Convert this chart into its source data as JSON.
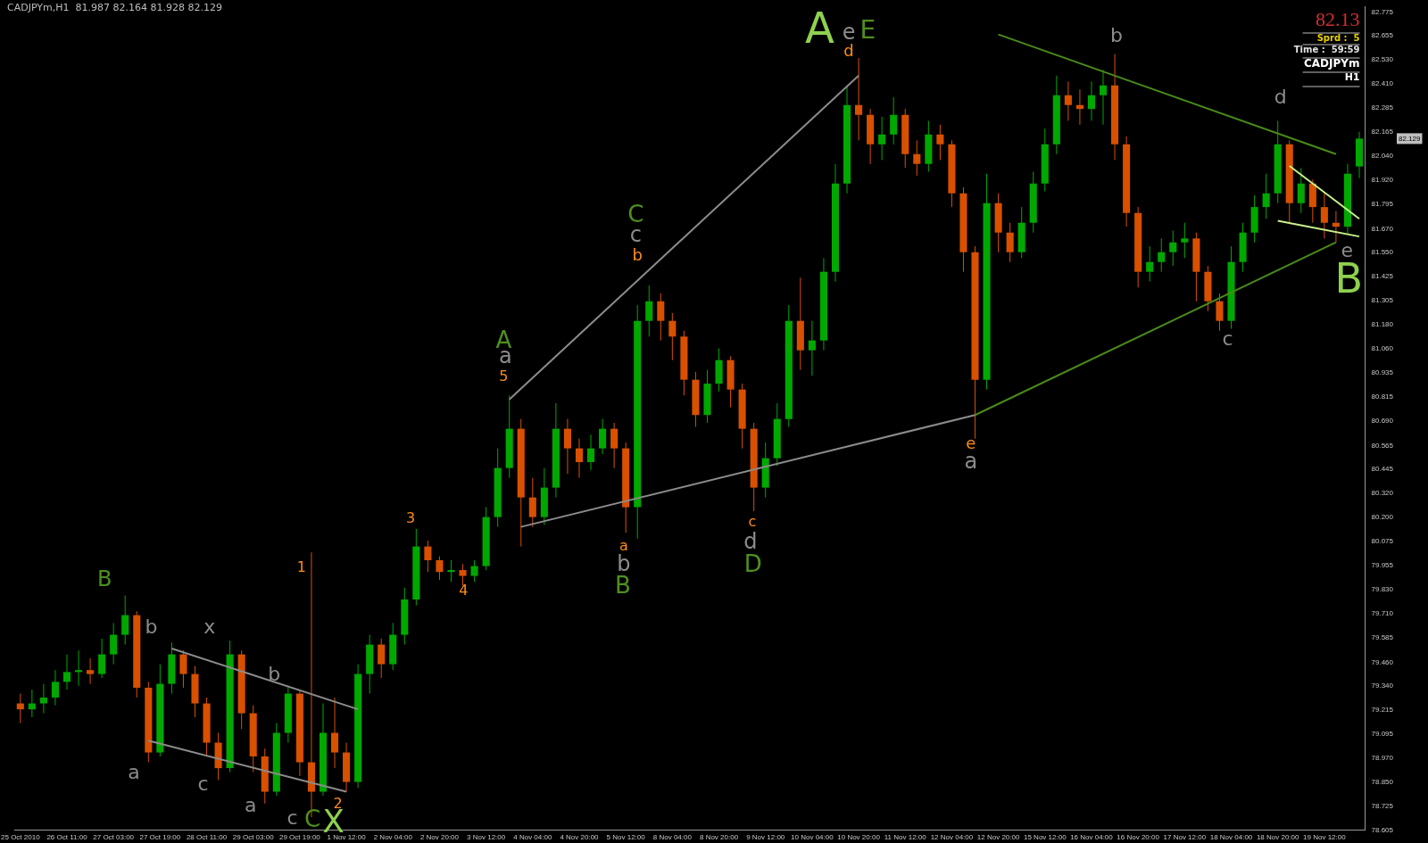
{
  "chart_data": {
    "type": "candlestick",
    "title": "CADJPYm,H1  81.987 82.164 81.928 82.129",
    "categories": [
      "25 Oct 2010",
      null,
      null,
      null,
      "26 Oct 11:00",
      null,
      null,
      null,
      "27 Oct 03:00",
      null,
      null,
      null,
      "27 Oct 19:00",
      null,
      null,
      null,
      "28 Oct 11:00",
      null,
      null,
      null,
      "29 Oct 03:00",
      null,
      null,
      null,
      "29 Oct 19:00",
      null,
      null,
      null,
      "1 Nov 12:00",
      null,
      null,
      null,
      "2 Nov 04:00",
      null,
      null,
      null,
      "2 Nov 20:00",
      null,
      null,
      null,
      "3 Nov 12:00",
      null,
      null,
      null,
      "4 Nov 04:00",
      null,
      null,
      null,
      "4 Nov 20:00",
      null,
      null,
      null,
      "5 Nov 12:00",
      null,
      null,
      null,
      "8 Nov 04:00",
      null,
      null,
      null,
      "8 Nov 20:00",
      null,
      null,
      null,
      "9 Nov 12:00",
      null,
      null,
      null,
      "10 Nov 04:00",
      null,
      null,
      null,
      "10 Nov 20:00",
      null,
      null,
      null,
      "11 Nov 12:00",
      null,
      null,
      null,
      "12 Nov 04:00",
      null,
      null,
      null,
      "12 Nov 20:00",
      null,
      null,
      null,
      "15 Nov 12:00",
      null,
      null,
      null,
      "16 Nov 04:00",
      null,
      null,
      null,
      "16 Nov 20:00",
      null,
      null,
      null,
      "17 Nov 12:00",
      null,
      null,
      null,
      "18 Nov 04:00",
      null,
      null,
      null,
      "18 Nov 20:00",
      null,
      null,
      null,
      "19 Nov 12:00",
      null,
      null,
      null
    ],
    "ohlc": [
      [
        79.25,
        79.3,
        79.15,
        79.22
      ],
      [
        79.22,
        79.32,
        79.18,
        79.25
      ],
      [
        79.25,
        79.35,
        79.2,
        79.28
      ],
      [
        79.28,
        79.42,
        79.24,
        79.36
      ],
      [
        79.36,
        79.5,
        79.32,
        79.41
      ],
      [
        79.41,
        79.52,
        79.34,
        79.42
      ],
      [
        79.42,
        79.48,
        79.35,
        79.4
      ],
      [
        79.4,
        79.58,
        79.38,
        79.5
      ],
      [
        79.5,
        79.66,
        79.45,
        79.6
      ],
      [
        79.6,
        79.8,
        79.55,
        79.7
      ],
      [
        79.7,
        79.72,
        79.28,
        79.33
      ],
      [
        79.33,
        79.36,
        78.95,
        79.0
      ],
      [
        79.0,
        79.45,
        78.98,
        79.35
      ],
      [
        79.35,
        79.56,
        79.3,
        79.5
      ],
      [
        79.5,
        79.52,
        79.33,
        79.4
      ],
      [
        79.4,
        79.44,
        79.18,
        79.25
      ],
      [
        79.25,
        79.28,
        78.98,
        79.05
      ],
      [
        79.05,
        79.1,
        78.86,
        78.92
      ],
      [
        78.92,
        79.57,
        78.9,
        79.5
      ],
      [
        79.5,
        79.52,
        79.12,
        79.2
      ],
      [
        79.2,
        79.24,
        78.9,
        78.98
      ],
      [
        78.98,
        79.02,
        78.74,
        78.8
      ],
      [
        78.8,
        79.15,
        78.78,
        79.1
      ],
      [
        79.1,
        79.34,
        79.05,
        79.3
      ],
      [
        79.3,
        79.32,
        78.88,
        78.95
      ],
      [
        78.95,
        80.02,
        78.67,
        78.8
      ],
      [
        78.8,
        79.25,
        78.78,
        79.1
      ],
      [
        79.1,
        79.28,
        78.92,
        79.0
      ],
      [
        79.0,
        79.05,
        78.8,
        78.85
      ],
      [
        78.85,
        79.45,
        78.82,
        79.4
      ],
      [
        79.4,
        79.6,
        79.3,
        79.55
      ],
      [
        79.55,
        79.58,
        79.38,
        79.45
      ],
      [
        79.45,
        79.66,
        79.42,
        79.6
      ],
      [
        79.6,
        79.84,
        79.55,
        79.78
      ],
      [
        79.78,
        80.14,
        79.75,
        80.05
      ],
      [
        80.05,
        80.08,
        79.92,
        79.98
      ],
      [
        79.98,
        80.0,
        79.88,
        79.92
      ],
      [
        79.92,
        79.98,
        79.87,
        79.93
      ],
      [
        79.93,
        79.96,
        79.85,
        79.9
      ],
      [
        79.9,
        79.98,
        79.87,
        79.95
      ],
      [
        79.95,
        80.25,
        79.93,
        80.2
      ],
      [
        80.2,
        80.55,
        80.15,
        80.45
      ],
      [
        80.45,
        80.82,
        80.4,
        80.65
      ],
      [
        80.65,
        80.7,
        80.05,
        80.3
      ],
      [
        80.3,
        80.4,
        80.15,
        80.2
      ],
      [
        80.2,
        80.45,
        80.16,
        80.35
      ],
      [
        80.35,
        80.78,
        80.3,
        80.65
      ],
      [
        80.65,
        80.7,
        80.42,
        80.55
      ],
      [
        80.55,
        80.6,
        80.4,
        80.48
      ],
      [
        80.48,
        80.62,
        80.44,
        80.55
      ],
      [
        80.55,
        80.7,
        80.52,
        80.65
      ],
      [
        80.65,
        80.68,
        80.45,
        80.55
      ],
      [
        80.55,
        80.58,
        80.12,
        80.25
      ],
      [
        80.25,
        81.28,
        80.09,
        81.2
      ],
      [
        81.2,
        81.38,
        81.12,
        81.3
      ],
      [
        81.3,
        81.34,
        81.1,
        81.2
      ],
      [
        81.2,
        81.24,
        81.0,
        81.12
      ],
      [
        81.12,
        81.15,
        80.82,
        80.9
      ],
      [
        80.9,
        80.94,
        80.66,
        80.72
      ],
      [
        80.72,
        80.95,
        80.68,
        80.88
      ],
      [
        80.88,
        81.06,
        80.84,
        81.0
      ],
      [
        81.0,
        81.02,
        80.76,
        80.85
      ],
      [
        80.85,
        80.88,
        80.55,
        80.65
      ],
      [
        80.65,
        80.68,
        80.23,
        80.35
      ],
      [
        80.35,
        80.58,
        80.3,
        80.5
      ],
      [
        80.5,
        80.78,
        80.46,
        80.7
      ],
      [
        80.7,
        81.28,
        80.66,
        81.2
      ],
      [
        81.2,
        81.42,
        80.95,
        81.05
      ],
      [
        81.05,
        81.2,
        80.92,
        81.1
      ],
      [
        81.1,
        81.52,
        81.05,
        81.45
      ],
      [
        81.45,
        82.0,
        81.4,
        81.9
      ],
      [
        81.9,
        82.4,
        81.85,
        82.3
      ],
      [
        82.3,
        82.54,
        82.12,
        82.25
      ],
      [
        82.25,
        82.28,
        82.0,
        82.1
      ],
      [
        82.1,
        82.24,
        82.02,
        82.15
      ],
      [
        82.15,
        82.34,
        82.1,
        82.25
      ],
      [
        82.25,
        82.28,
        81.98,
        82.05
      ],
      [
        82.05,
        82.12,
        81.94,
        82.0
      ],
      [
        82.0,
        82.22,
        81.96,
        82.15
      ],
      [
        82.15,
        82.2,
        82.02,
        82.1
      ],
      [
        82.1,
        82.12,
        81.78,
        81.85
      ],
      [
        81.85,
        81.88,
        81.45,
        81.55
      ],
      [
        81.55,
        81.58,
        80.6,
        80.9
      ],
      [
        80.9,
        81.95,
        80.85,
        81.8
      ],
      [
        81.8,
        81.85,
        81.55,
        81.65
      ],
      [
        81.65,
        81.7,
        81.5,
        81.55
      ],
      [
        81.55,
        81.78,
        81.52,
        81.7
      ],
      [
        81.7,
        81.96,
        81.65,
        81.9
      ],
      [
        81.9,
        82.18,
        81.86,
        82.1
      ],
      [
        82.1,
        82.45,
        82.05,
        82.35
      ],
      [
        82.35,
        82.42,
        82.22,
        82.3
      ],
      [
        82.3,
        82.38,
        82.2,
        82.28
      ],
      [
        82.28,
        82.42,
        82.22,
        82.35
      ],
      [
        82.35,
        82.48,
        82.2,
        82.4
      ],
      [
        82.4,
        82.56,
        82.02,
        82.1
      ],
      [
        82.1,
        82.14,
        81.68,
        81.75
      ],
      [
        81.75,
        81.78,
        81.37,
        81.45
      ],
      [
        81.45,
        81.58,
        81.4,
        81.5
      ],
      [
        81.5,
        81.62,
        81.45,
        81.55
      ],
      [
        81.55,
        81.66,
        81.48,
        81.6
      ],
      [
        81.6,
        81.7,
        81.52,
        81.62
      ],
      [
        81.62,
        81.65,
        81.3,
        81.45
      ],
      [
        81.45,
        81.48,
        81.25,
        81.3
      ],
      [
        81.3,
        81.34,
        81.15,
        81.2
      ],
      [
        81.2,
        81.58,
        81.16,
        81.5
      ],
      [
        81.5,
        81.7,
        81.45,
        81.65
      ],
      [
        81.65,
        81.84,
        81.6,
        81.78
      ],
      [
        81.78,
        81.95,
        81.72,
        81.85
      ],
      [
        81.85,
        82.22,
        81.8,
        82.1
      ],
      [
        82.1,
        82.12,
        81.7,
        81.8
      ],
      [
        81.8,
        81.98,
        81.75,
        81.9
      ],
      [
        81.9,
        81.92,
        81.7,
        81.78
      ],
      [
        81.78,
        81.85,
        81.62,
        81.7
      ],
      [
        81.7,
        81.76,
        81.6,
        81.68
      ],
      [
        81.68,
        82.0,
        81.64,
        81.95
      ],
      [
        81.987,
        82.164,
        81.928,
        82.129
      ]
    ],
    "colors": [
      "#d85000",
      "#00a800",
      "#00a800",
      "#00a800",
      "#00a800",
      "#00a800",
      "#d85000",
      "#00a800",
      "#00a800",
      "#00a800",
      "#d85000",
      "#d85000",
      "#00a800",
      "#00a800",
      "#d85000",
      "#d85000",
      "#d85000",
      "#d85000",
      "#00a800",
      "#d85000",
      "#d85000",
      "#d85000",
      "#00a800",
      "#00a800",
      "#d85000",
      "#d85000",
      "#00a800",
      "#d85000",
      "#d85000",
      "#00a800",
      "#00a800",
      "#d85000",
      "#00a800",
      "#00a800",
      "#00a800",
      "#d85000",
      "#d85000",
      "#00a800",
      "#d85000",
      "#00a800",
      "#00a800",
      "#00a800",
      "#00a800",
      "#d85000",
      "#d85000",
      "#00a800",
      "#00a800",
      "#d85000",
      "#d85000",
      "#00a800",
      "#00a800",
      "#d85000",
      "#d85000",
      "#00a800",
      "#00a800",
      "#d85000",
      "#d85000",
      "#d85000",
      "#d85000",
      "#00a800",
      "#00a800",
      "#d85000",
      "#d85000",
      "#d85000",
      "#00a800",
      "#00a800",
      "#00a800",
      "#d85000",
      "#00a800",
      "#00a800",
      "#00a800",
      "#00a800",
      "#d85000",
      "#d85000",
      "#00a800",
      "#00a800",
      "#d85000",
      "#d85000",
      "#00a800",
      "#d85000",
      "#d85000",
      "#d85000",
      "#d85000",
      "#00a800",
      "#d85000",
      "#d85000",
      "#00a800",
      "#00a800",
      "#00a800",
      "#00a800",
      "#d85000",
      "#d85000",
      "#00a800",
      "#00a800",
      "#d85000",
      "#d85000",
      "#d85000",
      "#00a800",
      "#00a800",
      "#00a800",
      "#00a800",
      "#d85000",
      "#d85000",
      "#d85000",
      "#00a800",
      "#00a800",
      "#00a800",
      "#00a800",
      "#00a800",
      "#d85000",
      "#00a800",
      "#d85000",
      "#d85000",
      "#d85000",
      "#00a800",
      "#00a800"
    ],
    "series": [
      {
        "type": "line",
        "color": "#8c8c8c",
        "values": [
          null,
          null,
          null,
          null,
          null,
          null,
          null,
          null,
          null,
          null,
          null,
          null,
          null,
          79.53,
          null,
          null,
          null,
          null,
          null,
          null,
          null,
          null,
          null,
          null,
          null,
          null,
          null,
          null,
          null,
          79.22,
          null,
          null,
          null,
          null,
          null,
          null,
          null,
          null,
          null,
          null,
          null,
          null,
          null,
          null,
          null,
          null,
          null,
          null,
          null,
          null,
          null,
          null,
          null,
          null,
          null,
          null,
          null,
          null,
          null,
          null,
          null,
          null,
          null,
          null,
          null,
          null,
          null,
          null,
          null,
          null,
          null,
          null,
          null,
          null,
          null,
          null,
          null,
          null,
          null,
          null,
          null,
          null,
          null,
          null,
          null,
          null,
          null,
          null,
          null,
          null,
          null,
          null,
          null,
          null,
          null,
          null,
          null,
          null,
          null,
          null,
          null,
          null,
          null,
          null,
          null,
          null,
          null,
          null,
          null,
          null,
          null,
          null,
          null,
          null,
          null,
          null
        ]
      },
      {
        "type": "line",
        "color": "#8c8c8c",
        "values": [
          null,
          null,
          null,
          null,
          null,
          null,
          null,
          null,
          null,
          null,
          null,
          79.06,
          null,
          null,
          null,
          null,
          null,
          null,
          null,
          null,
          null,
          null,
          null,
          null,
          null,
          null,
          null,
          null,
          78.8,
          null,
          null,
          null,
          null,
          null,
          null,
          null,
          null,
          null,
          null,
          null,
          null,
          null,
          null,
          null,
          null,
          null,
          null,
          null,
          null,
          null,
          null,
          null,
          null,
          null,
          null,
          null,
          null,
          null,
          null,
          null,
          null,
          null,
          null,
          null,
          null,
          null,
          null,
          null,
          null,
          null,
          null,
          null,
          null,
          null,
          null,
          null,
          null,
          null,
          null,
          null,
          null,
          null,
          null,
          null,
          null,
          null,
          null,
          null,
          null,
          null,
          null,
          null,
          null,
          null,
          null,
          null,
          null,
          null,
          null,
          null,
          null,
          null,
          null,
          null,
          null,
          null,
          null,
          null,
          null,
          null,
          null,
          null,
          null,
          null,
          null,
          null
        ]
      },
      {
        "type": "line",
        "color": "#8c8c8c",
        "values": [
          null,
          null,
          null,
          null,
          null,
          null,
          null,
          null,
          null,
          null,
          null,
          null,
          null,
          null,
          null,
          null,
          null,
          null,
          null,
          null,
          null,
          null,
          null,
          null,
          null,
          null,
          null,
          null,
          null,
          null,
          null,
          null,
          null,
          null,
          null,
          null,
          null,
          null,
          null,
          null,
          null,
          null,
          80.8,
          null,
          null,
          null,
          null,
          null,
          null,
          null,
          null,
          null,
          null,
          null,
          null,
          null,
          null,
          null,
          null,
          null,
          null,
          null,
          null,
          null,
          null,
          null,
          null,
          null,
          null,
          null,
          null,
          null,
          82.45,
          null,
          null,
          null,
          null,
          null,
          null,
          null,
          null,
          null,
          null,
          null,
          null,
          null,
          null,
          null,
          null,
          null,
          null,
          null,
          null,
          null,
          null,
          null,
          null,
          null,
          null,
          null,
          null,
          null,
          null,
          null,
          null,
          null,
          null,
          null,
          null,
          null,
          null,
          null,
          null,
          null,
          null,
          null
        ]
      },
      {
        "type": "line",
        "color": "#8c8c8c",
        "values": [
          null,
          null,
          null,
          null,
          null,
          null,
          null,
          null,
          null,
          null,
          null,
          null,
          null,
          null,
          null,
          null,
          null,
          null,
          null,
          null,
          null,
          null,
          null,
          null,
          null,
          null,
          null,
          null,
          null,
          null,
          null,
          null,
          null,
          null,
          null,
          null,
          null,
          null,
          null,
          null,
          null,
          null,
          null,
          80.15,
          null,
          null,
          null,
          null,
          null,
          null,
          null,
          null,
          null,
          null,
          null,
          null,
          null,
          null,
          null,
          null,
          null,
          null,
          null,
          null,
          null,
          null,
          null,
          null,
          null,
          null,
          null,
          null,
          null,
          null,
          null,
          null,
          null,
          null,
          null,
          null,
          null,
          null,
          80.72,
          null,
          null,
          null,
          null,
          null,
          null,
          null,
          null,
          null,
          null,
          null,
          null,
          null,
          null,
          null,
          null,
          null,
          null,
          null,
          null,
          null,
          null,
          null,
          null,
          null,
          null,
          null,
          null,
          null,
          null,
          null,
          null,
          null
        ]
      },
      {
        "type": "line",
        "color": "#4a8a1a",
        "values": [
          null,
          null,
          null,
          null,
          null,
          null,
          null,
          null,
          null,
          null,
          null,
          null,
          null,
          null,
          null,
          null,
          null,
          null,
          null,
          null,
          null,
          null,
          null,
          null,
          null,
          null,
          null,
          null,
          null,
          null,
          null,
          null,
          null,
          null,
          null,
          null,
          null,
          null,
          null,
          null,
          null,
          null,
          null,
          null,
          null,
          null,
          null,
          null,
          null,
          null,
          null,
          null,
          null,
          null,
          null,
          null,
          null,
          null,
          null,
          null,
          null,
          null,
          null,
          null,
          null,
          null,
          null,
          null,
          null,
          null,
          null,
          null,
          null,
          null,
          null,
          null,
          null,
          null,
          null,
          null,
          null,
          null,
          80.72,
          null,
          null,
          null,
          null,
          null,
          null,
          null,
          null,
          null,
          null,
          null,
          null,
          null,
          null,
          null,
          null,
          null,
          null,
          null,
          null,
          null,
          null,
          null,
          null,
          null,
          null,
          null,
          null,
          null,
          null,
          81.6,
          null,
          null
        ]
      },
      {
        "type": "line",
        "color": "#4a8a1a",
        "values": [
          null,
          null,
          null,
          null,
          null,
          null,
          null,
          null,
          null,
          null,
          null,
          null,
          null,
          null,
          null,
          null,
          null,
          null,
          null,
          null,
          null,
          null,
          null,
          null,
          null,
          null,
          null,
          null,
          null,
          null,
          null,
          null,
          null,
          null,
          null,
          null,
          null,
          null,
          null,
          null,
          null,
          null,
          null,
          null,
          null,
          null,
          null,
          null,
          null,
          null,
          null,
          null,
          null,
          null,
          null,
          null,
          null,
          null,
          null,
          null,
          null,
          null,
          null,
          null,
          null,
          null,
          null,
          null,
          null,
          null,
          null,
          null,
          null,
          null,
          null,
          null,
          null,
          null,
          null,
          null,
          null,
          null,
          null,
          null,
          82.66,
          null,
          null,
          null,
          null,
          null,
          null,
          null,
          null,
          null,
          null,
          null,
          null,
          null,
          null,
          null,
          null,
          null,
          null,
          null,
          null,
          null,
          null,
          null,
          null,
          null,
          null,
          null,
          null,
          82.05,
          null,
          null
        ]
      },
      {
        "type": "line",
        "color": "#c8f08c",
        "values": [
          null,
          null,
          null,
          null,
          null,
          null,
          null,
          null,
          null,
          null,
          null,
          null,
          null,
          null,
          null,
          null,
          null,
          null,
          null,
          null,
          null,
          null,
          null,
          null,
          null,
          null,
          null,
          null,
          null,
          null,
          null,
          null,
          null,
          null,
          null,
          null,
          null,
          null,
          null,
          null,
          null,
          null,
          null,
          null,
          null,
          null,
          null,
          null,
          null,
          null,
          null,
          null,
          null,
          null,
          null,
          null,
          null,
          null,
          null,
          null,
          null,
          null,
          null,
          null,
          null,
          null,
          null,
          null,
          null,
          null,
          null,
          null,
          null,
          null,
          null,
          null,
          null,
          null,
          null,
          null,
          null,
          null,
          null,
          null,
          null,
          null,
          null,
          null,
          null,
          null,
          null,
          null,
          null,
          null,
          null,
          null,
          null,
          null,
          null,
          null,
          null,
          null,
          null,
          null,
          null,
          null,
          null,
          null,
          null,
          81.99,
          null,
          null,
          null,
          null,
          null,
          81.72
        ]
      },
      {
        "type": "line",
        "color": "#c8f08c",
        "values": [
          null,
          null,
          null,
          null,
          null,
          null,
          null,
          null,
          null,
          null,
          null,
          null,
          null,
          null,
          null,
          null,
          null,
          null,
          null,
          null,
          null,
          null,
          null,
          null,
          null,
          null,
          null,
          null,
          null,
          null,
          null,
          null,
          null,
          null,
          null,
          null,
          null,
          null,
          null,
          null,
          null,
          null,
          null,
          null,
          null,
          null,
          null,
          null,
          null,
          null,
          null,
          null,
          null,
          null,
          null,
          null,
          null,
          null,
          null,
          null,
          null,
          null,
          null,
          null,
          null,
          null,
          null,
          null,
          null,
          null,
          null,
          null,
          null,
          null,
          null,
          null,
          null,
          null,
          null,
          null,
          null,
          null,
          null,
          null,
          null,
          null,
          null,
          null,
          null,
          null,
          null,
          null,
          null,
          null,
          null,
          null,
          null,
          null,
          null,
          null,
          null,
          null,
          null,
          null,
          null,
          null,
          null,
          null,
          81.71,
          null,
          null,
          null,
          null,
          null,
          null,
          81.63
        ]
      }
    ],
    "annotations": [
      "82.13",
      "Sprd :  5",
      "Time :  59:59",
      "CADJPYm",
      "H1",
      "82.129",
      "B",
      "b",
      "x",
      "a",
      "c",
      "a",
      "b",
      "c",
      "C",
      "X",
      "1",
      "2",
      "3",
      "4",
      "5",
      "a",
      "A",
      "C",
      "c",
      "b",
      "a",
      "b",
      "B",
      "c",
      "d",
      "D",
      "A",
      "e",
      "d",
      "E",
      "e",
      "a",
      "b",
      "d",
      "c",
      "e",
      "B"
    ],
    "ylim": [
      78.605,
      82.8
    ],
    "yticks": [
      82.775,
      82.655,
      {
        "value": 82.53,
        "label": "82.530"
      },
      {
        "value": 82.41,
        "label": "82.410"
      },
      82.285,
      82.165,
      {
        "value": 82.04,
        "label": "82.040"
      },
      {
        "value": 81.92,
        "label": "81.920"
      },
      81.795,
      {
        "value": 81.67,
        "label": "81.670"
      },
      {
        "value": 81.55,
        "label": "81.550"
      },
      81.425,
      81.305,
      {
        "value": 81.18,
        "label": "81.180"
      },
      {
        "value": 81.06,
        "label": "81.060"
      },
      80.935,
      80.815,
      {
        "value": 80.69,
        "label": "80.690"
      },
      80.565,
      80.445,
      {
        "value": 80.32,
        "label": "80.320"
      },
      {
        "value": 80.2,
        "label": "80.200"
      },
      80.075,
      79.955,
      {
        "value": 79.83,
        "label": "79.830"
      },
      {
        "value": 79.71,
        "label": "79.710"
      },
      79.585,
      {
        "value": 79.46,
        "label": "79.460"
      },
      {
        "value": 79.34,
        "label": "79.340"
      },
      79.215,
      79.095,
      {
        "value": 78.97,
        "label": "78.970"
      },
      {
        "value": 78.85,
        "label": "78.850"
      },
      78.725,
      78.605
    ],
    "grid": false,
    "legend": false
  }
}
